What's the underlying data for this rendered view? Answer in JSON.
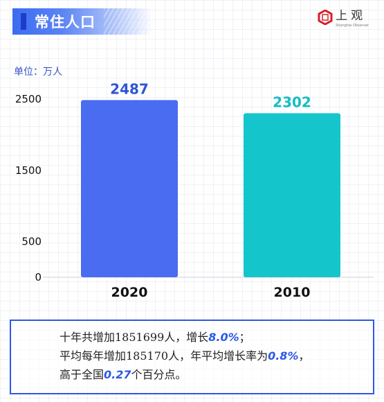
{
  "title": "常住人口",
  "logo": {
    "cn": "上观",
    "en": "Shanghai Observer"
  },
  "unit_label": "单位：万人",
  "colors": {
    "bar_2020": "#4a6cf0",
    "bar_2010": "#14c6cc",
    "label_2020": "#2f55d4",
    "label_2010": "#17bcc4",
    "accent": "#2c58e6"
  },
  "chart_data": {
    "type": "bar",
    "categories": [
      "2020",
      "2010"
    ],
    "values": [
      2487,
      2302
    ],
    "data_labels": [
      "2487",
      "2302"
    ],
    "title": "",
    "xlabel": "",
    "ylabel": "单位：万人",
    "y_ticks": [
      0,
      500,
      1500,
      2500
    ],
    "ylim": [
      0,
      2500
    ],
    "grid": false
  },
  "summary": {
    "line1": {
      "a": "十年共增加1851699人，增长",
      "b": "8.0%",
      "c": "；"
    },
    "line2": {
      "a": "平均每年增加185170人，年平均增长率为",
      "b": "0.8%",
      "c": "，"
    },
    "line3": {
      "a": "高于全国",
      "b": "0.27",
      "c": "个百分点。"
    }
  }
}
